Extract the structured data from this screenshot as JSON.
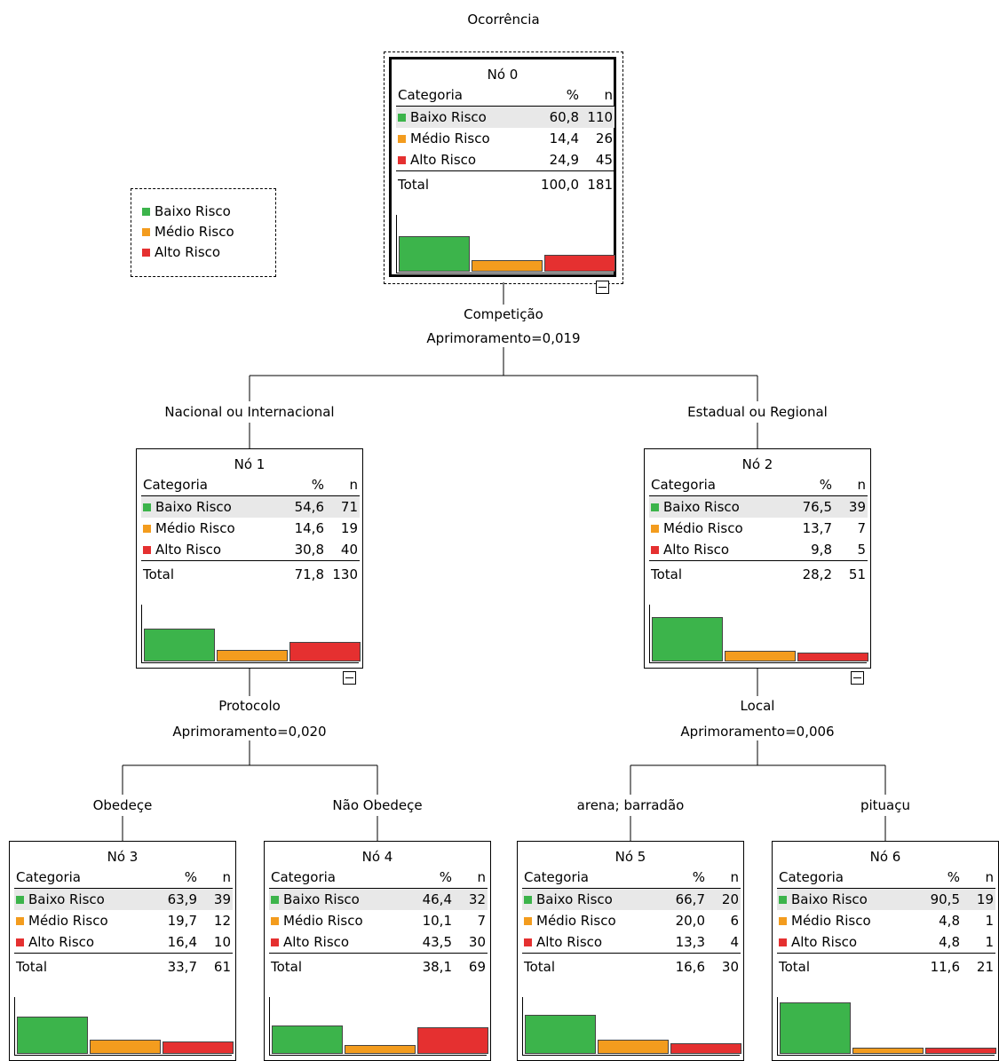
{
  "tree": {
    "root_label": "Ocorrência",
    "legend": [
      {
        "label": "Baixo Risco",
        "color": "#3cb44b"
      },
      {
        "label": "Médio Risco",
        "color": "#f39c1e"
      },
      {
        "label": "Alto Risco",
        "color": "#e53030"
      }
    ],
    "header": {
      "category": "Categoria",
      "percent": "%",
      "n": "n"
    },
    "total_label": "Total",
    "splits": {
      "root": {
        "variable": "Competição",
        "improvement": "Aprimoramento=0,019"
      },
      "node1": {
        "variable": "Protocolo",
        "improvement": "Aprimoramento=0,020"
      },
      "node2": {
        "variable": "Local",
        "improvement": "Aprimoramento=0,006"
      }
    },
    "branches": {
      "b1": "Nacional ou Internacional",
      "b2": "Estadual ou Regional",
      "b3": "Obedeçe",
      "b4": "Não Obedeçe",
      "b5": "arena; barradão",
      "b6": "pituaçu"
    },
    "nodes": [
      {
        "title": "Nó 0",
        "rows": [
          {
            "category": "Baixo Risco",
            "percent": "60,8",
            "n": "110"
          },
          {
            "category": "Médio Risco",
            "percent": "14,4",
            "n": "26"
          },
          {
            "category": "Alto Risco",
            "percent": "24,9",
            "n": "45"
          }
        ],
        "total_percent": "100,0",
        "total_n": "181",
        "bar_fracs": [
          0.608,
          0.144,
          0.249
        ]
      },
      {
        "title": "Nó 1",
        "rows": [
          {
            "category": "Baixo Risco",
            "percent": "54,6",
            "n": "71"
          },
          {
            "category": "Médio Risco",
            "percent": "14,6",
            "n": "19"
          },
          {
            "category": "Alto Risco",
            "percent": "30,8",
            "n": "40"
          }
        ],
        "total_percent": "71,8",
        "total_n": "130",
        "bar_fracs": [
          0.546,
          0.146,
          0.308
        ]
      },
      {
        "title": "Nó 2",
        "rows": [
          {
            "category": "Baixo Risco",
            "percent": "76,5",
            "n": "39"
          },
          {
            "category": "Médio Risco",
            "percent": "13,7",
            "n": "7"
          },
          {
            "category": "Alto Risco",
            "percent": "9,8",
            "n": "5"
          }
        ],
        "total_percent": "28,2",
        "total_n": "51",
        "bar_fracs": [
          0.765,
          0.137,
          0.098
        ]
      },
      {
        "title": "Nó 3",
        "rows": [
          {
            "category": "Baixo Risco",
            "percent": "63,9",
            "n": "39"
          },
          {
            "category": "Médio Risco",
            "percent": "19,7",
            "n": "12"
          },
          {
            "category": "Alto Risco",
            "percent": "16,4",
            "n": "10"
          }
        ],
        "total_percent": "33,7",
        "total_n": "61",
        "bar_fracs": [
          0.639,
          0.197,
          0.164
        ]
      },
      {
        "title": "Nó 4",
        "rows": [
          {
            "category": "Baixo Risco",
            "percent": "46,4",
            "n": "32"
          },
          {
            "category": "Médio Risco",
            "percent": "10,1",
            "n": "7"
          },
          {
            "category": "Alto Risco",
            "percent": "43,5",
            "n": "30"
          }
        ],
        "total_percent": "38,1",
        "total_n": "69",
        "bar_fracs": [
          0.464,
          0.101,
          0.435
        ]
      },
      {
        "title": "Nó 5",
        "rows": [
          {
            "category": "Baixo Risco",
            "percent": "66,7",
            "n": "20"
          },
          {
            "category": "Médio Risco",
            "percent": "20,0",
            "n": "6"
          },
          {
            "category": "Alto Risco",
            "percent": "13,3",
            "n": "4"
          }
        ],
        "total_percent": "16,6",
        "total_n": "30",
        "bar_fracs": [
          0.667,
          0.2,
          0.133
        ]
      },
      {
        "title": "Nó 6",
        "rows": [
          {
            "category": "Baixo Risco",
            "percent": "90,5",
            "n": "19"
          },
          {
            "category": "Médio Risco",
            "percent": "4,8",
            "n": "1"
          },
          {
            "category": "Alto Risco",
            "percent": "4,8",
            "n": "1"
          }
        ],
        "total_percent": "11,6",
        "total_n": "21",
        "bar_fracs": [
          0.905,
          0.048,
          0.048
        ]
      }
    ]
  }
}
